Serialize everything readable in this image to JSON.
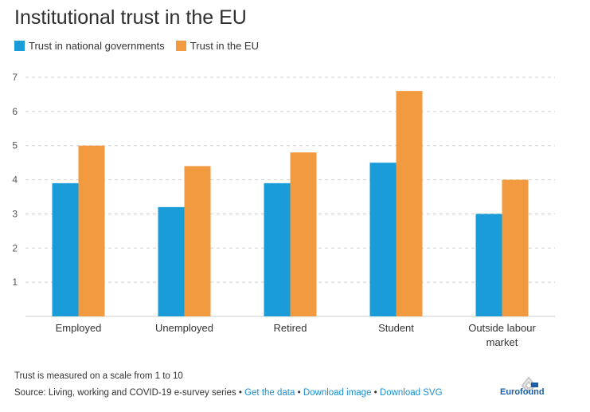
{
  "page": {
    "title": "Institutional trust in the EU",
    "note": "Trust is measured on a scale from 1 to 10",
    "source_prefix": "Source: Living, working and COVID-19 e-survey series • ",
    "links": [
      "Get the data",
      "Download image",
      "Download SVG"
    ],
    "separator": " • ",
    "logo_text": "Eurofound"
  },
  "chart_data": {
    "type": "bar",
    "title": "Institutional trust in the EU",
    "xlabel": "",
    "ylabel": "",
    "categories": [
      "Employed",
      "Unemployed",
      "Retired",
      "Student",
      "Outside labour market"
    ],
    "category_lines": [
      [
        "Employed"
      ],
      [
        "Unemployed"
      ],
      [
        "Retired"
      ],
      [
        "Student"
      ],
      [
        "Outside labour",
        "market"
      ]
    ],
    "series": [
      {
        "name": "Trust in national governments",
        "color": "#1a9cd8",
        "values": [
          3.9,
          3.2,
          3.9,
          4.5,
          3.0
        ]
      },
      {
        "name": "Trust in the EU",
        "color": "#f29a40",
        "values": [
          5.0,
          4.4,
          4.8,
          6.6,
          4.0
        ]
      }
    ],
    "ylim": [
      0,
      7
    ],
    "yticks": [
      1,
      2,
      3,
      4,
      5,
      6,
      7
    ],
    "grid": true,
    "legend_position": "top-left"
  }
}
